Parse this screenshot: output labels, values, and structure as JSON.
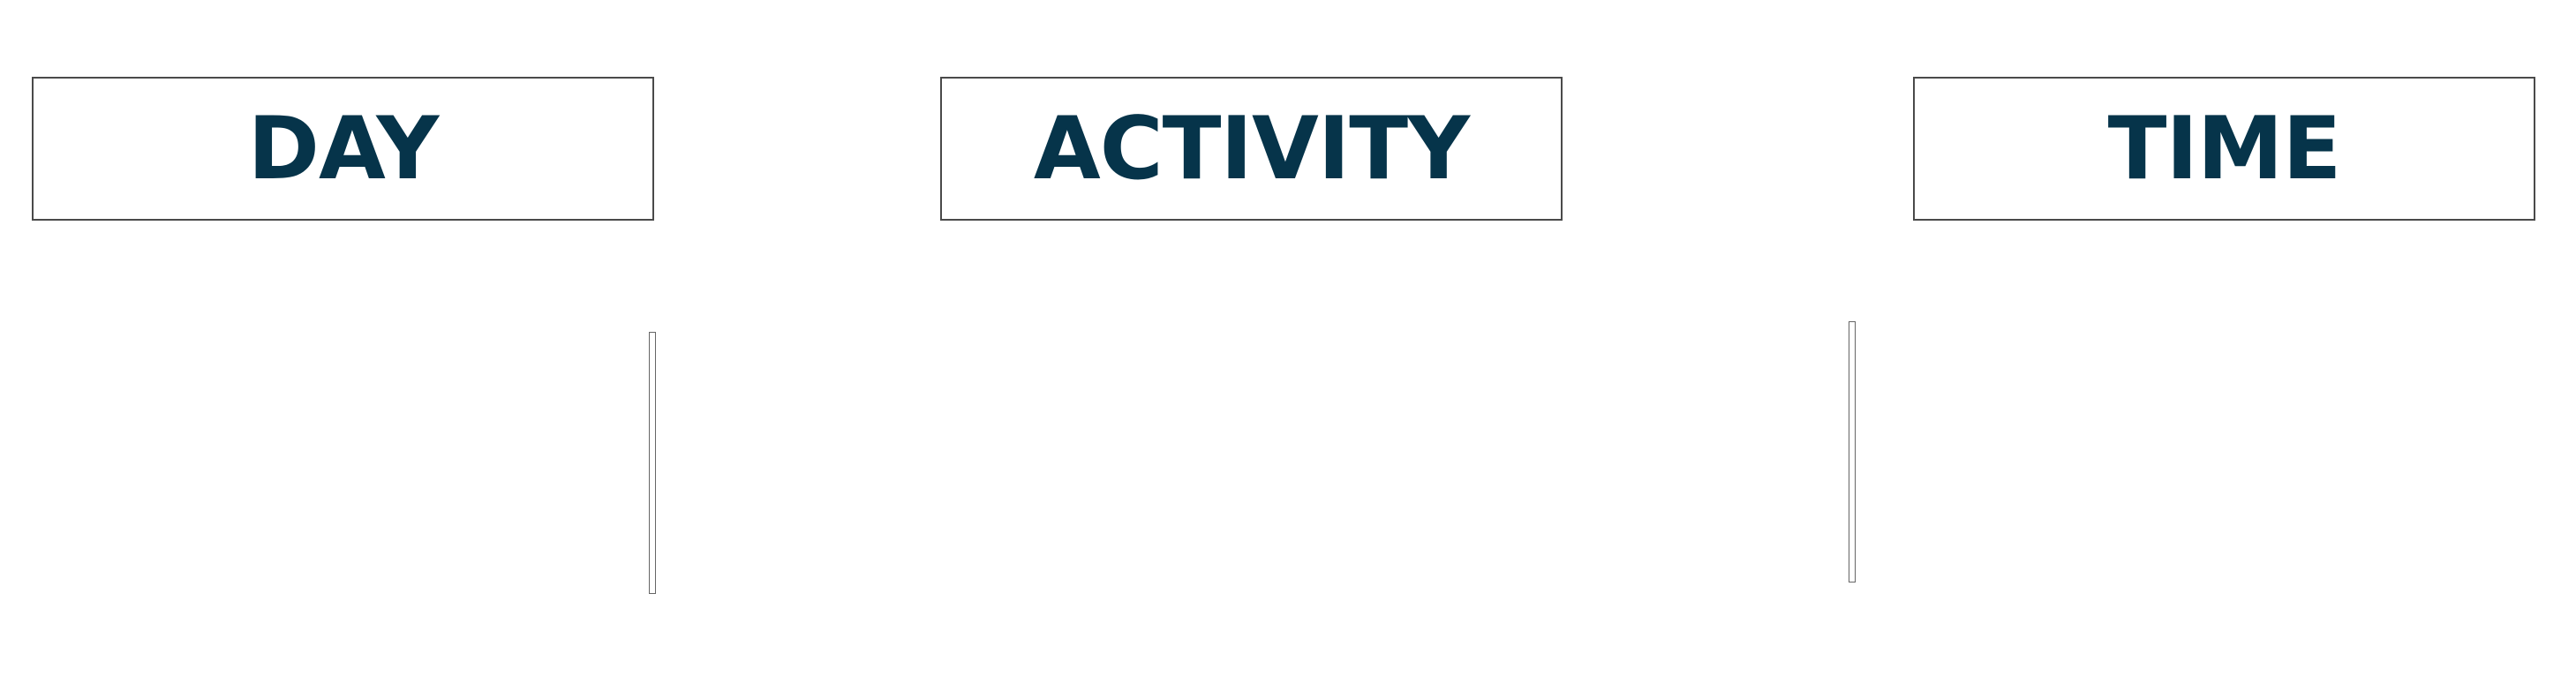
{
  "headers": {
    "day": "DAY",
    "activity": "ACTIVITY",
    "time": "TIME"
  },
  "colors": {
    "label": "#06344a",
    "border": "#4a4a4a",
    "background": "#ffffff"
  }
}
